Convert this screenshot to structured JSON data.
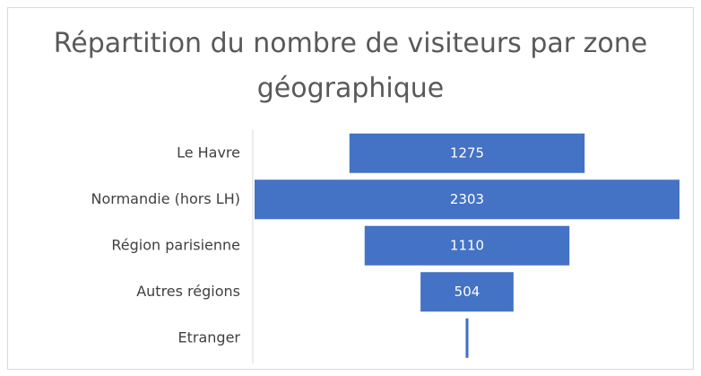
{
  "chart_data": {
    "type": "funnel",
    "title": "Répartition du nombre de visiteurs par zone géographique",
    "categories": [
      "Le Havre",
      "Normandie (hors LH)",
      "Région parisienne",
      "Autres régions",
      "Etranger"
    ],
    "values": [
      1275,
      2303,
      1110,
      504,
      15
    ],
    "color": "#4472c4"
  }
}
